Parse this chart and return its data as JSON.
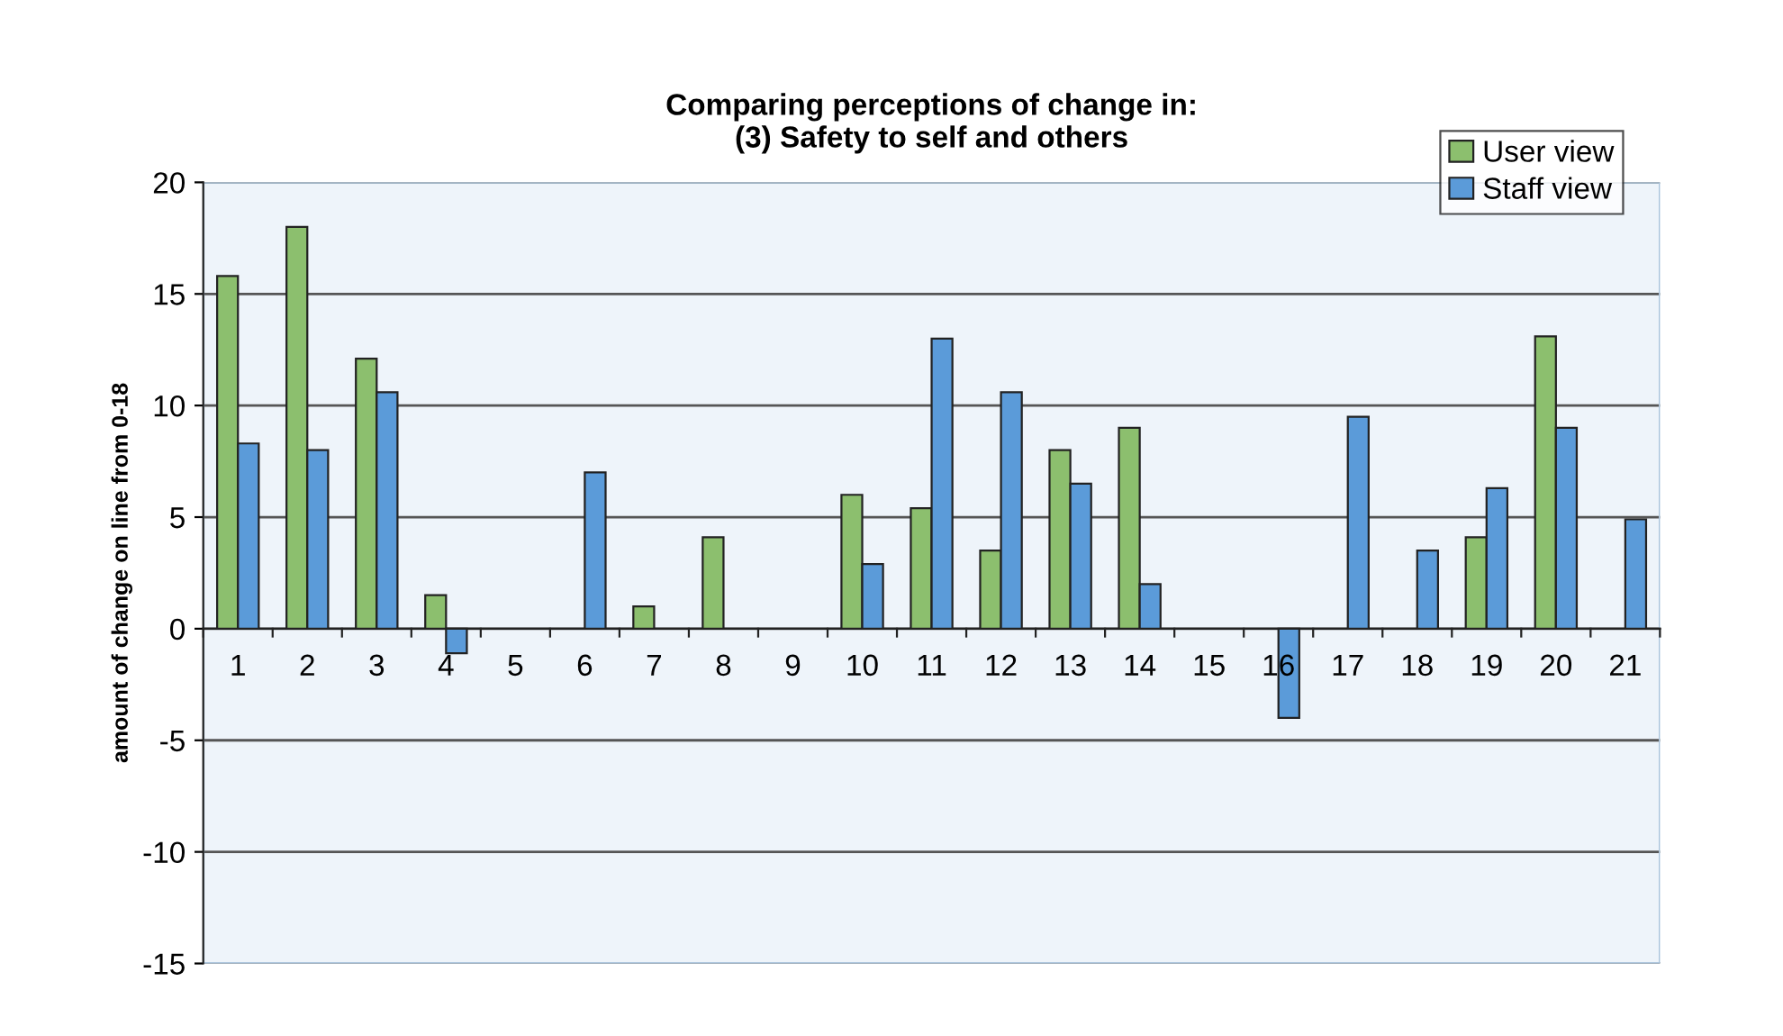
{
  "chart_data": {
    "type": "bar",
    "title": "Comparing perceptions of change in:\n(3) Safety to self and others",
    "ylabel": "amount of change on line from 0-18",
    "categories": [
      "1",
      "2",
      "3",
      "4",
      "5",
      "6",
      "7",
      "8",
      "9",
      "10",
      "11",
      "12",
      "13",
      "14",
      "15",
      "16",
      "17",
      "18",
      "19",
      "20",
      "21"
    ],
    "series": [
      {
        "name": "User view",
        "color": "#8cbf6e",
        "values": [
          15.8,
          18,
          12.1,
          1.5,
          null,
          null,
          1,
          4.1,
          null,
          6,
          5.4,
          3.5,
          8,
          9,
          null,
          null,
          null,
          null,
          4.1,
          13.1,
          null
        ]
      },
      {
        "name": "Staff view",
        "color": "#5b9bd9",
        "values": [
          8.3,
          8,
          10.6,
          -1.1,
          null,
          7,
          null,
          null,
          null,
          2.9,
          13,
          10.6,
          6.5,
          2,
          null,
          -4,
          9.5,
          3.5,
          6.3,
          9,
          4.9
        ]
      }
    ],
    "ylim": [
      -15,
      20
    ],
    "yticks": [
      -15,
      -10,
      -5,
      0,
      5,
      10,
      15,
      20
    ],
    "grid": "y",
    "legend": "top right"
  }
}
